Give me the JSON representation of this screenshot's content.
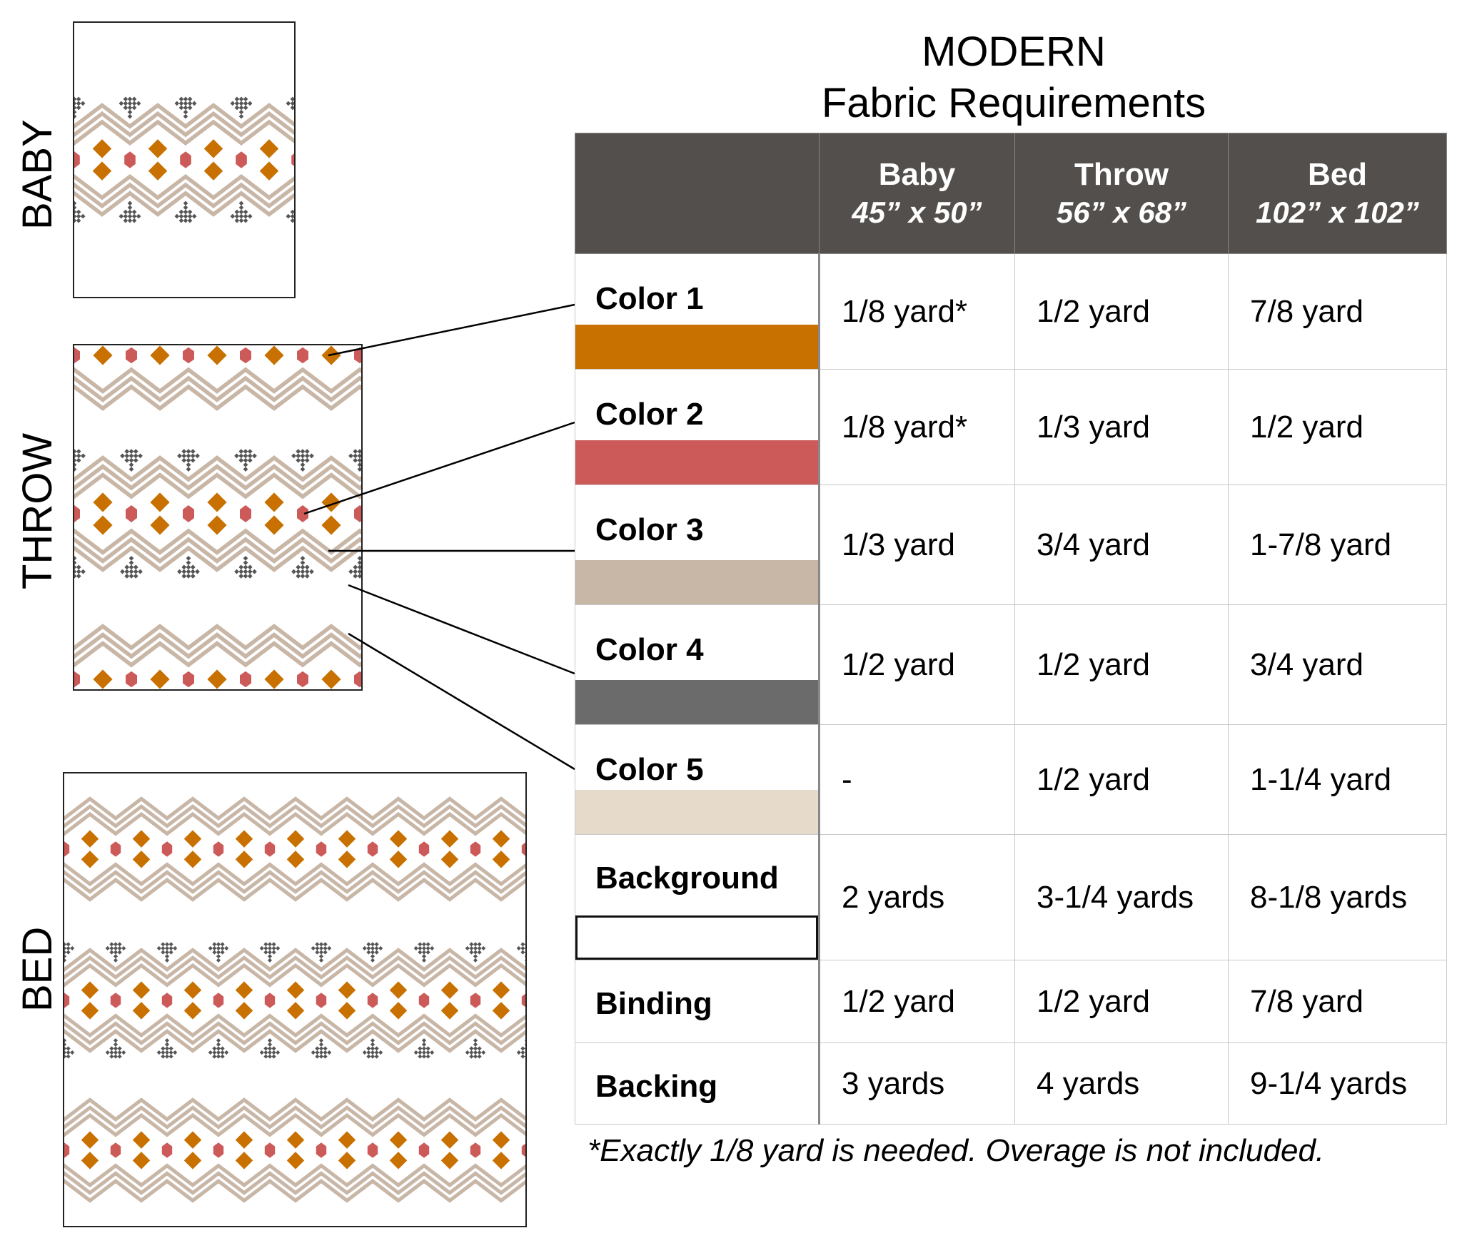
{
  "side_labels": {
    "baby": "BABY",
    "throw": "THROW",
    "bed": "BED"
  },
  "title": {
    "line1": "MODERN",
    "line2": "Fabric Requirements"
  },
  "columns": [
    {
      "size": "Baby",
      "dims": "45” x 50”"
    },
    {
      "size": "Throw",
      "dims": "56” x 68”"
    },
    {
      "size": "Bed",
      "dims": "102” x 102”"
    }
  ],
  "rows": [
    {
      "label": "Color 1",
      "swatch": "#c87000",
      "values": [
        "1/8 yard*",
        "1/2 yard",
        "7/8 yard"
      ]
    },
    {
      "label": "Color 2",
      "swatch": "#cc5a58",
      "values": [
        "1/8 yard*",
        "1/3 yard",
        "1/2 yard"
      ]
    },
    {
      "label": "Color 3",
      "swatch": "#c8b6a6",
      "values": [
        "1/3 yard",
        "3/4 yard",
        "1-7/8 yard"
      ]
    },
    {
      "label": "Color 4",
      "swatch": "#6b6b6b",
      "values": [
        "1/2 yard",
        "1/2 yard",
        "3/4 yard"
      ]
    },
    {
      "label": "Color 5",
      "swatch": "#e6dacb",
      "values": [
        "-",
        "1/2 yard",
        "1-1/4 yard"
      ]
    },
    {
      "label": "Background",
      "swatch": "#ffffff",
      "values": [
        "2 yards",
        "3-1/4 yards",
        "8-1/8 yards"
      ]
    },
    {
      "label": "Binding",
      "swatch": null,
      "values": [
        "1/2 yard",
        "1/2 yard",
        "7/8 yard"
      ]
    },
    {
      "label": "Backing",
      "swatch": null,
      "values": [
        "3 yards",
        "4 yards",
        "9-1/4 yards"
      ]
    }
  ],
  "footnote": "*Exactly 1/8 yard is needed. Overage is not included.",
  "palette": {
    "color1": "#c87000",
    "color2": "#cc5a58",
    "color3": "#c8b6a6",
    "color4": "#555555",
    "color5": "#e6dacb",
    "header_bg": "#534f4d"
  }
}
